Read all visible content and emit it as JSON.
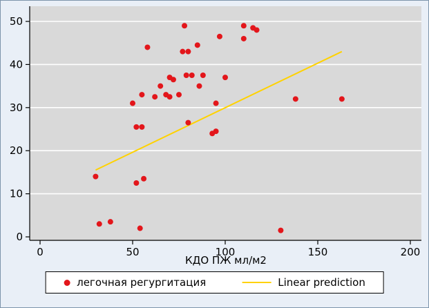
{
  "figure": {
    "background": "#e9eff7",
    "plot_background": "#d9d9d9",
    "gridline_color": "#ffffff",
    "axis_color": "#000000",
    "border_color": "#7d94ab"
  },
  "chart_data": {
    "type": "scatter",
    "title": "",
    "xlabel": "КДО ПЖ мл/м2",
    "ylabel": "",
    "xlim": [
      0,
      200
    ],
    "ylim": [
      0,
      50
    ],
    "x_ticks": [
      0,
      50,
      100,
      150,
      200
    ],
    "y_ticks": [
      0,
      10,
      20,
      30,
      40,
      50
    ],
    "grid": "horizontal white gridlines on gray plot area",
    "legend_position": "bottom-center",
    "series": [
      {
        "name": "легочная регургитация",
        "type": "scatter",
        "color": "#e3161b",
        "marker": "circle",
        "points": [
          [
            30,
            14
          ],
          [
            32,
            3
          ],
          [
            38,
            3.5
          ],
          [
            50,
            31
          ],
          [
            52,
            25.5
          ],
          [
            55,
            25.5
          ],
          [
            52,
            12.5
          ],
          [
            56,
            13.5
          ],
          [
            55,
            33
          ],
          [
            58,
            44
          ],
          [
            54,
            2
          ],
          [
            62,
            32.5
          ],
          [
            65,
            35
          ],
          [
            68,
            33
          ],
          [
            70,
            37
          ],
          [
            72,
            36.5
          ],
          [
            70,
            32.5
          ],
          [
            75,
            33
          ],
          [
            78,
            49
          ],
          [
            77,
            43
          ],
          [
            80,
            43
          ],
          [
            79,
            37.5
          ],
          [
            82,
            37.5
          ],
          [
            80,
            26.5
          ],
          [
            85,
            44.5
          ],
          [
            86,
            35
          ],
          [
            88,
            37.5
          ],
          [
            93,
            24
          ],
          [
            95,
            24.5
          ],
          [
            95,
            31
          ],
          [
            97,
            46.5
          ],
          [
            100,
            37
          ],
          [
            110,
            49
          ],
          [
            110,
            46
          ],
          [
            115,
            48.5
          ],
          [
            117,
            48
          ],
          [
            130,
            1.5
          ],
          [
            138,
            32
          ],
          [
            163,
            32
          ]
        ]
      },
      {
        "name": "Linear prediction",
        "type": "line",
        "color": "#ffd200",
        "points": [
          [
            30,
            15.5
          ],
          [
            163,
            43
          ]
        ]
      }
    ]
  },
  "legend": {
    "scatter_label": "легочная регургитация",
    "line_label": "Linear prediction"
  }
}
